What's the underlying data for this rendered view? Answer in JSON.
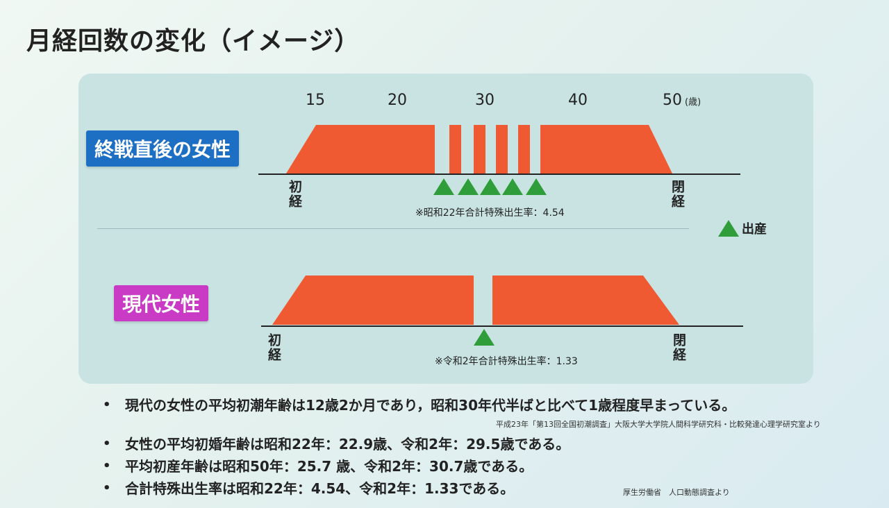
{
  "title": "月経回数の変化（イメージ）",
  "ages": {
    "ticks": [
      "15",
      "20",
      "30",
      "40",
      "50"
    ],
    "unit": "(歳)"
  },
  "colors": {
    "period": "#ef5a33",
    "birth": "#2f9e3a",
    "label_postwar": "#1d6fc3",
    "label_modern": "#c93bc4"
  },
  "postwar": {
    "label": "終戦直後の女性",
    "menarche": "初経",
    "menopause": "閉経",
    "note": "※昭和22年合計特殊出生率：4.54",
    "births": 5
  },
  "modern": {
    "label": "現代女性",
    "menarche": "初経",
    "menopause": "閉経",
    "note": "※令和2年合計特殊出生率：1.33",
    "births": 1
  },
  "legend": {
    "icon": "green-triangle-icon",
    "text": "出産"
  },
  "bullets": [
    {
      "text": "現代の女性の平均初潮年齢は12歳2か月であり，昭和30年代半ばと比べて1歳程度早まっている。"
    },
    {
      "text": "女性の平均初婚年齢は昭和22年：22.9歳、令和2年：29.5歳である。"
    },
    {
      "text": "平均初産年齢は昭和50年：25.7 歳、令和2年：30.7歳である。"
    },
    {
      "text": "合計特殊出生率は昭和22年：4.54、令和2年：1.33である。"
    }
  ],
  "sources": {
    "first": "平成23年「第13回全国初潮調査」大阪大学大学院人間科学研究科・比較発達心理学研究室より",
    "second": "厚生労働省　人口動態調査より"
  }
}
